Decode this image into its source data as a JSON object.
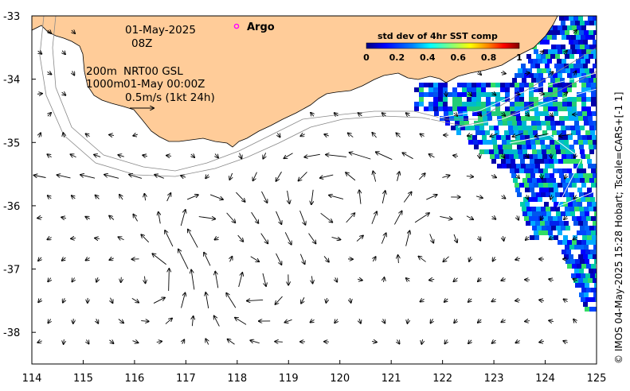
{
  "annotations": {
    "date": "01-May-2025",
    "time": "08Z",
    "depth_200": "200m",
    "depth_1000": "1000m",
    "product": "NRT00 GSL",
    "product_time": "01-May 00:00Z",
    "scale": "0.5m/s (1kt 24h)"
  },
  "legend": {
    "argo_label": "Argo",
    "colorbar_title": "std dev of 4hr SST comp",
    "colorbar_ticks": [
      "0",
      "0.2",
      "0.4",
      "0.6",
      "0.8",
      "1"
    ],
    "colorbar_colors": [
      "#00007f",
      "#0000ff",
      "#007fff",
      "#00ffff",
      "#7fff7f",
      "#ffff00",
      "#ff7f00",
      "#ff0000",
      "#7f0000"
    ],
    "argo_color": "#ff00ff"
  },
  "axes": {
    "x_ticks": [
      "114",
      "115",
      "116",
      "117",
      "118",
      "119",
      "120",
      "121",
      "122",
      "123",
      "124",
      "125"
    ],
    "y_ticks": [
      "-33",
      "-34",
      "-35",
      "-36",
      "-37",
      "-38"
    ],
    "x_range": [
      114,
      125
    ],
    "y_range": [
      -38.5,
      -33
    ]
  },
  "colors": {
    "land": "#ffcc99",
    "sst_mid": "#0033cc",
    "sst_high": "#00cc88"
  },
  "credit": "© IMOS 04-May-2025 15:28 Hobart; Tscale=CARS+[-1 1]"
}
